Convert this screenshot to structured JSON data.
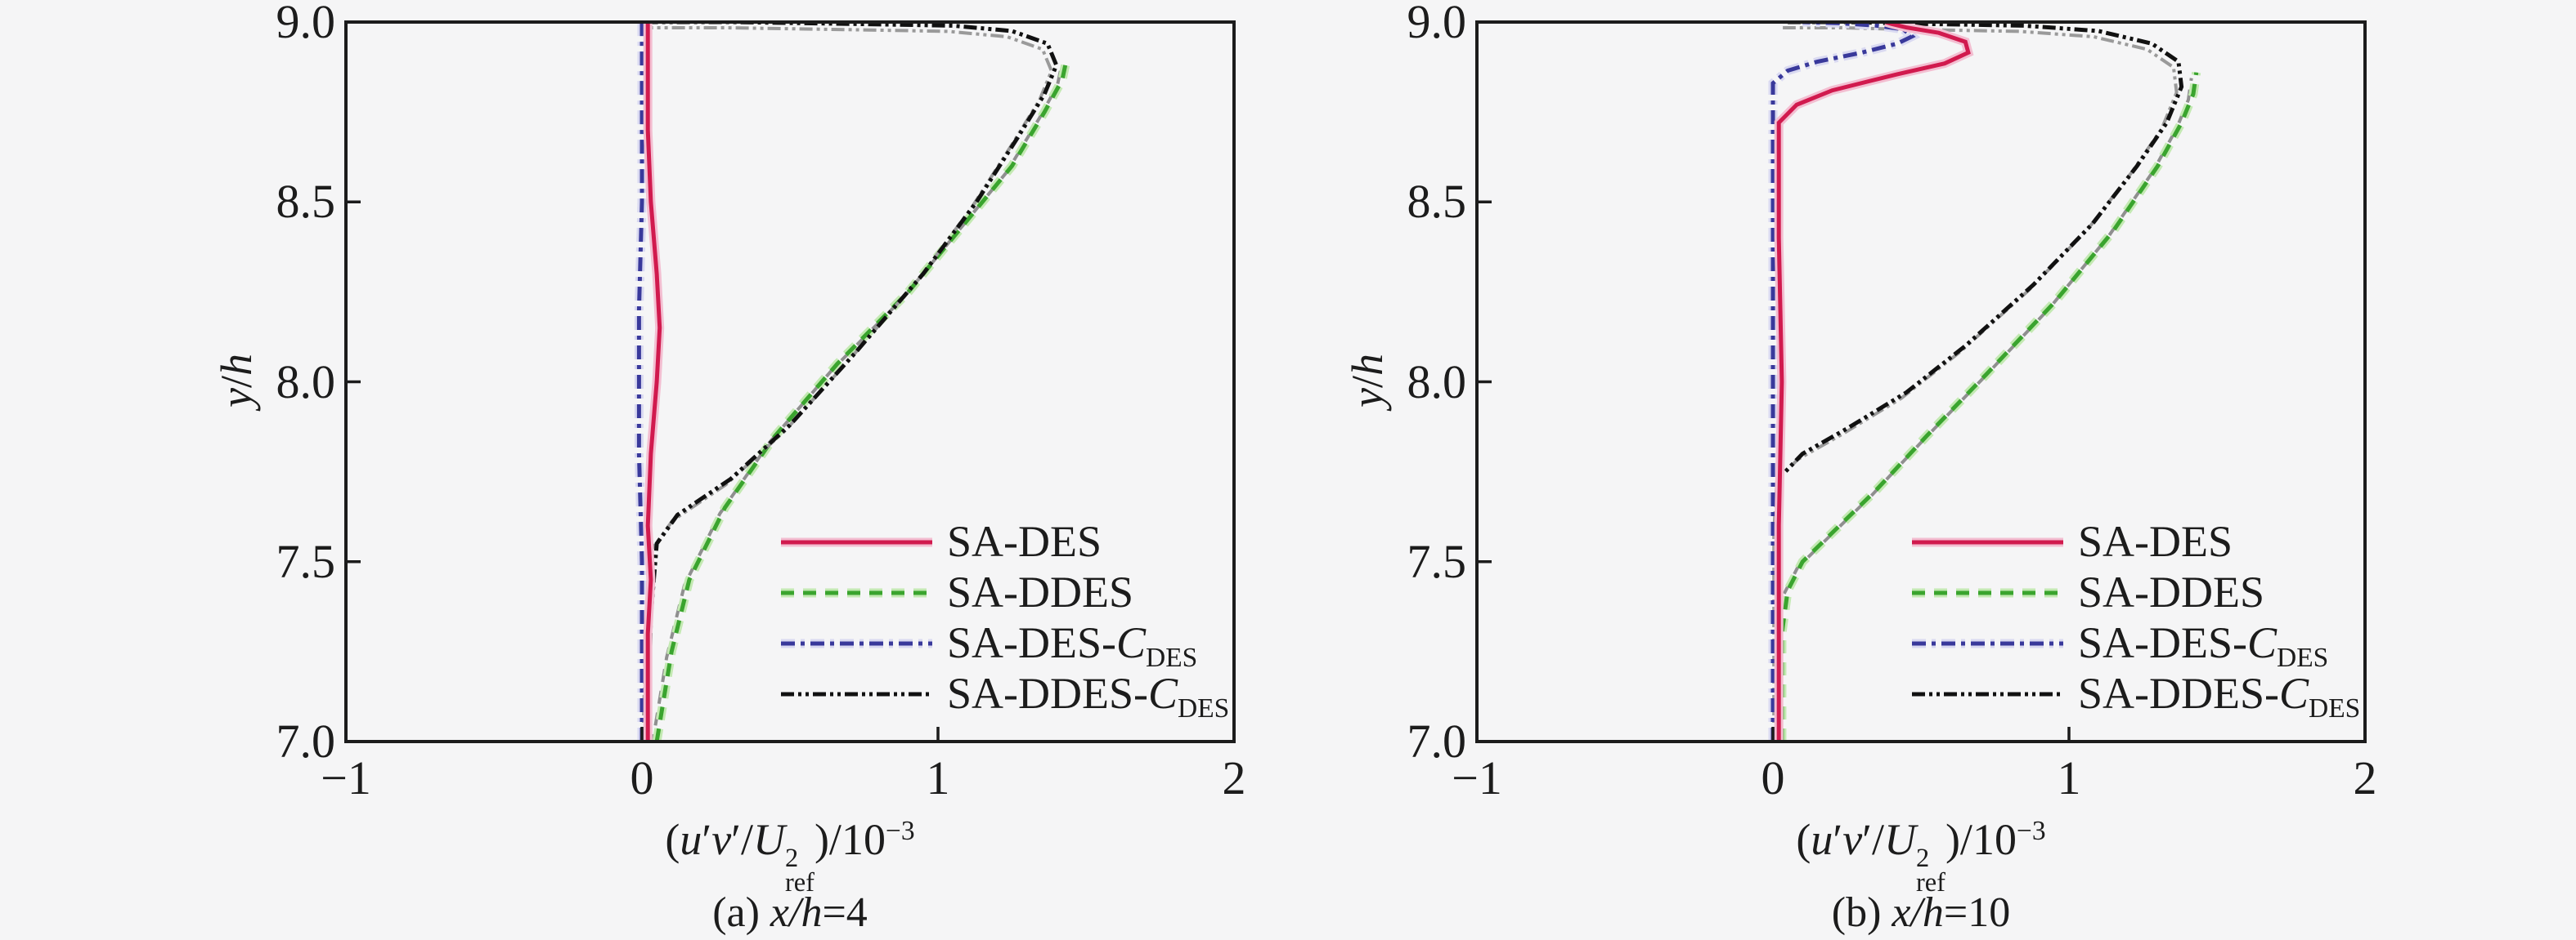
{
  "figure": {
    "background": "#f5f5f6",
    "axis_color": "#1c1c1c",
    "text_color": "#1c1c1c"
  },
  "chart_data": {
    "type": "line",
    "grid": false,
    "legend_position": "lower right",
    "legend_entries": [
      {
        "series": "SA-DES",
        "label_parts": [
          {
            "text": "SA-DES"
          }
        ]
      },
      {
        "series": "SA-DDES",
        "label_parts": [
          {
            "text": "SA-DDES"
          }
        ]
      },
      {
        "series": "SA-DES-CDES",
        "label_parts": [
          {
            "text": "SA-DES-"
          },
          {
            "text": "C",
            "italic": true
          },
          {
            "sub": "DES"
          }
        ]
      },
      {
        "series": "SA-DDES-CDES",
        "label_parts": [
          {
            "text": "SA-DDES-"
          },
          {
            "text": "C",
            "italic": true
          },
          {
            "sub": "DES"
          }
        ]
      }
    ],
    "styles": {
      "SA-DES": {
        "color": "#d11a4e",
        "halo": "#f3bed1",
        "linestyle": "solid",
        "shadow": null
      },
      "SA-DDES": {
        "color": "#3aa42e",
        "halo": "#c3e9b2",
        "linestyle": "dashed",
        "shadow": "#8f8f8f"
      },
      "SA-DES-CDES": {
        "color": "#39399b",
        "halo": "#d9d9f1",
        "linestyle": "dashdot",
        "shadow": null
      },
      "SA-DDES-CDES": {
        "color": "#111111",
        "halo": null,
        "linestyle": "dashdotdot",
        "shadow": "#9a9a9a"
      }
    },
    "plots": [
      {
        "id": "a",
        "caption_parts": [
          {
            "text": "(a) "
          },
          {
            "text": "x/h",
            "italic": true
          },
          {
            "text": "=4"
          }
        ],
        "xlabel_parts": [
          {
            "text": "("
          },
          {
            "text": "u",
            "italic": true
          },
          {
            "text": "′"
          },
          {
            "text": "v",
            "italic": true
          },
          {
            "text": "′/"
          },
          {
            "text": "U",
            "italic": true
          },
          {
            "supsub": {
              "sup": "2",
              "sub": "ref"
            }
          },
          {
            "text": ")/10"
          },
          {
            "sup": "−3"
          }
        ],
        "ylabel_parts": [
          {
            "text": "y",
            "italic": true
          },
          {
            "text": "/"
          },
          {
            "text": "h",
            "italic": true
          }
        ],
        "xlim": [
          -1,
          2
        ],
        "ylim": [
          7.0,
          9.0
        ],
        "xticks": [
          {
            "v": -1,
            "label": "−1"
          },
          {
            "v": 0,
            "label": "0"
          },
          {
            "v": 1,
            "label": "1"
          },
          {
            "v": 2,
            "label": "2"
          }
        ],
        "yticks": [
          {
            "v": 9.0,
            "label": "9.0"
          },
          {
            "v": 8.5,
            "label": "8.5"
          },
          {
            "v": 8.0,
            "label": "8.0"
          },
          {
            "v": 7.5,
            "label": "7.5"
          },
          {
            "v": 7.0,
            "label": "7.0"
          }
        ],
        "series": [
          {
            "name": "SA-DDES",
            "points": [
              [
                0.05,
                7.0
              ],
              [
                0.07,
                7.1
              ],
              [
                0.1,
                7.25
              ],
              [
                0.16,
                7.45
              ],
              [
                0.28,
                7.65
              ],
              [
                0.45,
                7.85
              ],
              [
                0.66,
                8.05
              ],
              [
                0.9,
                8.25
              ],
              [
                1.1,
                8.45
              ],
              [
                1.25,
                8.6
              ],
              [
                1.36,
                8.75
              ],
              [
                1.42,
                8.84
              ],
              [
                1.43,
                8.88
              ]
            ]
          },
          {
            "name": "SA-DDES-CDES",
            "points": [
              [
                0.02,
                7.0
              ],
              [
                0.03,
                7.35
              ],
              [
                0.05,
                7.55
              ],
              [
                0.12,
                7.63
              ],
              [
                0.3,
                7.73
              ],
              [
                0.5,
                7.88
              ],
              [
                0.72,
                8.08
              ],
              [
                0.95,
                8.3
              ],
              [
                1.13,
                8.5
              ],
              [
                1.27,
                8.68
              ],
              [
                1.36,
                8.8
              ],
              [
                1.4,
                8.88
              ],
              [
                1.37,
                8.94
              ],
              [
                1.25,
                8.975
              ],
              [
                1.05,
                8.99
              ],
              [
                0.7,
                8.995
              ],
              [
                0.3,
                9.0
              ],
              [
                0.02,
                9.0
              ]
            ]
          },
          {
            "name": "SA-DES-CDES",
            "points": [
              [
                0.0,
                7.0
              ],
              [
                0.0,
                7.5
              ],
              [
                -0.01,
                7.8
              ],
              [
                -0.01,
                8.2
              ],
              [
                0.0,
                8.5
              ],
              [
                0.0,
                9.0
              ]
            ]
          },
          {
            "name": "SA-DES",
            "points": [
              [
                0.02,
                7.0
              ],
              [
                0.02,
                7.3
              ],
              [
                0.03,
                7.45
              ],
              [
                0.02,
                7.6
              ],
              [
                0.03,
                7.8
              ],
              [
                0.05,
                8.0
              ],
              [
                0.06,
                8.15
              ],
              [
                0.05,
                8.3
              ],
              [
                0.03,
                8.5
              ],
              [
                0.02,
                8.7
              ],
              [
                0.02,
                9.0
              ]
            ]
          }
        ]
      },
      {
        "id": "b",
        "caption_parts": [
          {
            "text": "(b) "
          },
          {
            "text": "x/h",
            "italic": true
          },
          {
            "text": "=10"
          }
        ],
        "xlabel_parts": [
          {
            "text": "("
          },
          {
            "text": "u",
            "italic": true
          },
          {
            "text": "′"
          },
          {
            "text": "v",
            "italic": true
          },
          {
            "text": "′/"
          },
          {
            "text": "U",
            "italic": true
          },
          {
            "supsub": {
              "sup": "2",
              "sub": "ref"
            }
          },
          {
            "text": ")/10"
          },
          {
            "sup": "−3"
          }
        ],
        "ylabel_parts": [
          {
            "text": "y",
            "italic": true
          },
          {
            "text": "/"
          },
          {
            "text": "h",
            "italic": true
          }
        ],
        "xlim": [
          -1,
          2
        ],
        "ylim": [
          7.0,
          9.0
        ],
        "xticks": [
          {
            "v": -1,
            "label": "−1"
          },
          {
            "v": 0,
            "label": "0"
          },
          {
            "v": 1,
            "label": "1"
          },
          {
            "v": 2,
            "label": "2"
          }
        ],
        "yticks": [
          {
            "v": 9.0,
            "label": "9.0"
          },
          {
            "v": 8.5,
            "label": "8.5"
          },
          {
            "v": 8.0,
            "label": "8.0"
          },
          {
            "v": 7.5,
            "label": "7.5"
          },
          {
            "v": 7.0,
            "label": "7.0"
          }
        ],
        "series": [
          {
            "name": "SA-DDES",
            "points": [
              [
                0.03,
                7.0
              ],
              [
                0.03,
                7.3
              ],
              [
                0.05,
                7.42
              ],
              [
                0.1,
                7.5
              ],
              [
                0.2,
                7.58
              ],
              [
                0.35,
                7.7
              ],
              [
                0.52,
                7.85
              ],
              [
                0.72,
                8.02
              ],
              [
                0.95,
                8.22
              ],
              [
                1.15,
                8.42
              ],
              [
                1.3,
                8.6
              ],
              [
                1.38,
                8.72
              ],
              [
                1.42,
                8.8
              ],
              [
                1.43,
                8.86
              ]
            ]
          },
          {
            "name": "SA-DDES-CDES",
            "points": [
              [
                0.02,
                7.0
              ],
              [
                0.02,
                7.4
              ],
              [
                0.02,
                7.6
              ],
              [
                0.03,
                7.74
              ],
              [
                0.1,
                7.8
              ],
              [
                0.25,
                7.87
              ],
              [
                0.45,
                7.97
              ],
              [
                0.65,
                8.1
              ],
              [
                0.88,
                8.27
              ],
              [
                1.08,
                8.44
              ],
              [
                1.23,
                8.6
              ],
              [
                1.33,
                8.72
              ],
              [
                1.38,
                8.82
              ],
              [
                1.37,
                8.89
              ],
              [
                1.28,
                8.94
              ],
              [
                1.1,
                8.975
              ],
              [
                0.85,
                8.99
              ],
              [
                0.5,
                8.995
              ],
              [
                0.25,
                9.0
              ],
              [
                0.05,
                9.0
              ]
            ]
          },
          {
            "name": "SA-DES-CDES",
            "points": [
              [
                0.0,
                7.0
              ],
              [
                0.0,
                7.8
              ],
              [
                0.0,
                8.3
              ],
              [
                0.0,
                8.68
              ],
              [
                0.0,
                8.83
              ],
              [
                0.05,
                8.865
              ],
              [
                0.15,
                8.89
              ],
              [
                0.3,
                8.915
              ],
              [
                0.42,
                8.94
              ],
              [
                0.47,
                8.96
              ],
              [
                0.44,
                8.98
              ],
              [
                0.35,
                8.99
              ],
              [
                0.22,
                8.997
              ],
              [
                0.1,
                9.0
              ]
            ]
          },
          {
            "name": "SA-DES",
            "points": [
              [
                0.02,
                7.0
              ],
              [
                0.02,
                7.6
              ],
              [
                0.03,
                8.0
              ],
              [
                0.02,
                8.4
              ],
              [
                0.02,
                8.6
              ],
              [
                0.02,
                8.72
              ],
              [
                0.08,
                8.77
              ],
              [
                0.2,
                8.81
              ],
              [
                0.42,
                8.855
              ],
              [
                0.58,
                8.885
              ],
              [
                0.66,
                8.915
              ],
              [
                0.65,
                8.945
              ],
              [
                0.56,
                8.97
              ],
              [
                0.45,
                8.985
              ],
              [
                0.4,
                8.995
              ],
              [
                0.38,
                9.0
              ]
            ]
          }
        ]
      }
    ]
  }
}
